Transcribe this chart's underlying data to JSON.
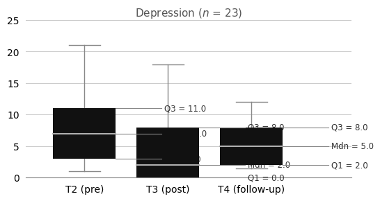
{
  "title_text": "Depression ($n$ = 23)",
  "groups": [
    "T2 (pre)",
    "T3 (post)",
    "T4 (follow-up)"
  ],
  "stats": [
    {
      "q1": 3.0,
      "median": 7.0,
      "q3": 11.0,
      "whisker_low": 1.0,
      "whisker_high": 21.0
    },
    {
      "q1": 0.0,
      "median": 2.0,
      "q3": 8.0,
      "whisker_low": 0.0,
      "whisker_high": 18.0
    },
    {
      "q1": 2.0,
      "median": 5.0,
      "q3": 8.0,
      "whisker_low": 1.5,
      "whisker_high": 12.0
    }
  ],
  "labels": [
    {
      "q1_label": "Q1 = 3.0",
      "mdn_label": "Mdn = 7.0",
      "q3_label": "Q3 = 11.0"
    },
    {
      "q1_label": "Q1 = 0.0",
      "mdn_label": "Mdn = 2.0",
      "q3_label": "Q3 = 8.0"
    },
    {
      "q1_label": "Q1 = 2.0",
      "mdn_label": "Mdn = 5.0",
      "q3_label": "Q3 = 8.0"
    }
  ],
  "ylim": [
    0,
    25
  ],
  "yticks": [
    0,
    5,
    10,
    15,
    20,
    25
  ],
  "box_color": "#111111",
  "median_color": "#b0b0b0",
  "whisker_color": "#888888",
  "anno_line_color": "#888888",
  "box_width": 0.75,
  "background_color": "#ffffff",
  "grid_color": "#cccccc",
  "label_fontsize": 8.5,
  "tick_fontsize": 10,
  "title_fontsize": 11,
  "title_color": "#555555",
  "text_color": "#333333"
}
